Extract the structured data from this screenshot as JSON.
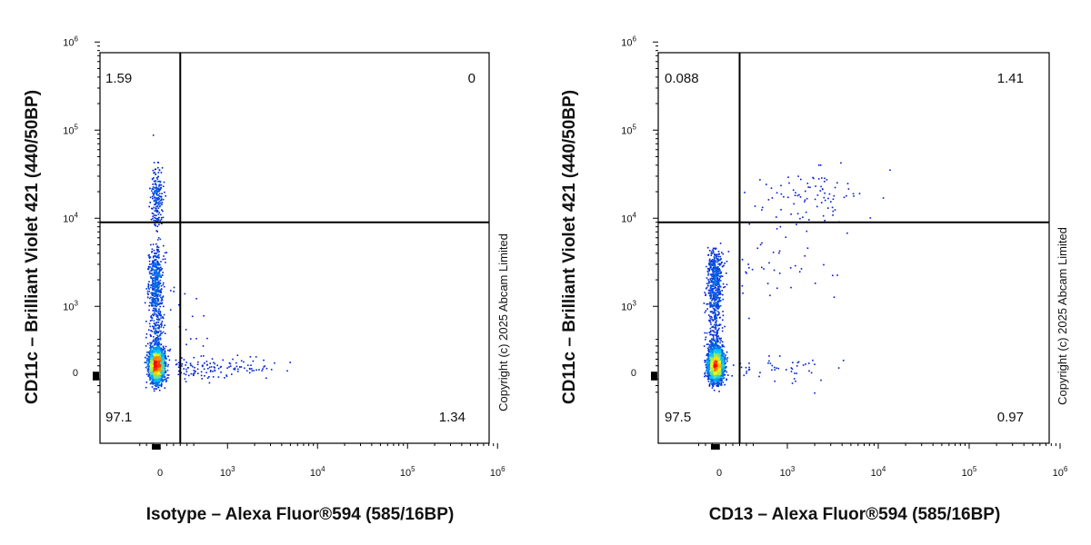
{
  "chart_data": [
    {
      "type": "scatter",
      "subtype": "flow-cytometry-density-dot-plot",
      "xlabel": "Isotype – Alexa Fluor®594 (585/16BP)",
      "ylabel": "CD11c – Brilliant Violet 421  (440/50BP)",
      "x_scale": "biexponential",
      "y_scale": "biexponential",
      "x_ticks": [
        {
          "value": 0,
          "label": "0",
          "exp": ""
        },
        {
          "value": 1000,
          "label": "10",
          "exp": "3"
        },
        {
          "value": 10000,
          "label": "10",
          "exp": "4"
        },
        {
          "value": 100000,
          "label": "10",
          "exp": "5"
        },
        {
          "value": 1000000,
          "label": "10",
          "exp": "6"
        }
      ],
      "y_ticks": [
        {
          "value": 0,
          "label": "0",
          "exp": ""
        },
        {
          "value": 1000,
          "label": "10",
          "exp": "3"
        },
        {
          "value": 10000,
          "label": "10",
          "exp": "4"
        },
        {
          "value": 100000,
          "label": "10",
          "exp": "5"
        },
        {
          "value": 1000000,
          "label": "10",
          "exp": "6"
        }
      ],
      "gate": {
        "x": 300,
        "y": 9000
      },
      "quadrants": {
        "upper_left": "1.59",
        "upper_right": "0",
        "lower_left": "97.1",
        "lower_right": "1.34"
      },
      "populations": [
        {
          "x": -60,
          "y": 120,
          "x_spread": 50,
          "y_spread": 110,
          "weight": 0.78
        },
        {
          "x": -70,
          "y": 1200,
          "x_spread": 55,
          "y_spread": 1400,
          "weight": 0.14
        },
        {
          "x": -60,
          "y": 18000,
          "x_spread": 45,
          "y_spread": 8000,
          "weight": 0.04
        },
        {
          "x": 800,
          "y": 60,
          "x_spread": 500,
          "y_spread": 80,
          "weight": 0.025
        },
        {
          "x": 300,
          "y": 600,
          "x_spread": 200,
          "y_spread": 500,
          "weight": 0.005
        }
      ]
    },
    {
      "type": "scatter",
      "subtype": "flow-cytometry-density-dot-plot",
      "xlabel": "CD13 – Alexa Fluor®594 (585/16BP)",
      "ylabel": "CD11c – Brilliant Violet 421  (440/50BP)",
      "x_scale": "biexponential",
      "y_scale": "biexponential",
      "x_ticks": [
        {
          "value": 0,
          "label": "0",
          "exp": ""
        },
        {
          "value": 1000,
          "label": "10",
          "exp": "3"
        },
        {
          "value": 10000,
          "label": "10",
          "exp": "4"
        },
        {
          "value": 100000,
          "label": "10",
          "exp": "5"
        },
        {
          "value": 1000000,
          "label": "10",
          "exp": "6"
        }
      ],
      "y_ticks": [
        {
          "value": 0,
          "label": "0",
          "exp": ""
        },
        {
          "value": 1000,
          "label": "10",
          "exp": "3"
        },
        {
          "value": 10000,
          "label": "10",
          "exp": "4"
        },
        {
          "value": 100000,
          "label": "10",
          "exp": "5"
        },
        {
          "value": 1000000,
          "label": "10",
          "exp": "6"
        }
      ],
      "gate": {
        "x": 300,
        "y": 9000
      },
      "quadrants": {
        "upper_left": "0.088",
        "upper_right": "1.41",
        "lower_left": "97.5",
        "lower_right": "0.97"
      },
      "populations": [
        {
          "x": -60,
          "y": 120,
          "x_spread": 50,
          "y_spread": 110,
          "weight": 0.82
        },
        {
          "x": -70,
          "y": 1200,
          "x_spread": 55,
          "y_spread": 1400,
          "weight": 0.145
        },
        {
          "x": 2000,
          "y": 17000,
          "x_spread": 1300,
          "y_spread": 6000,
          "weight": 0.018
        },
        {
          "x": 1000,
          "y": 80,
          "x_spread": 700,
          "y_spread": 90,
          "weight": 0.01
        },
        {
          "x": 700,
          "y": 3000,
          "x_spread": 500,
          "y_spread": 3000,
          "weight": 0.007
        }
      ]
    }
  ],
  "copyright": "Copyright (c) 2025 Abcam Limited",
  "colors": {
    "density_low": "#0000cc",
    "density_mid": "#00c8ff",
    "density_high": "#ffff00",
    "density_peak": "#ff0000",
    "gate_line": "#000000",
    "axis": "#000000"
  }
}
